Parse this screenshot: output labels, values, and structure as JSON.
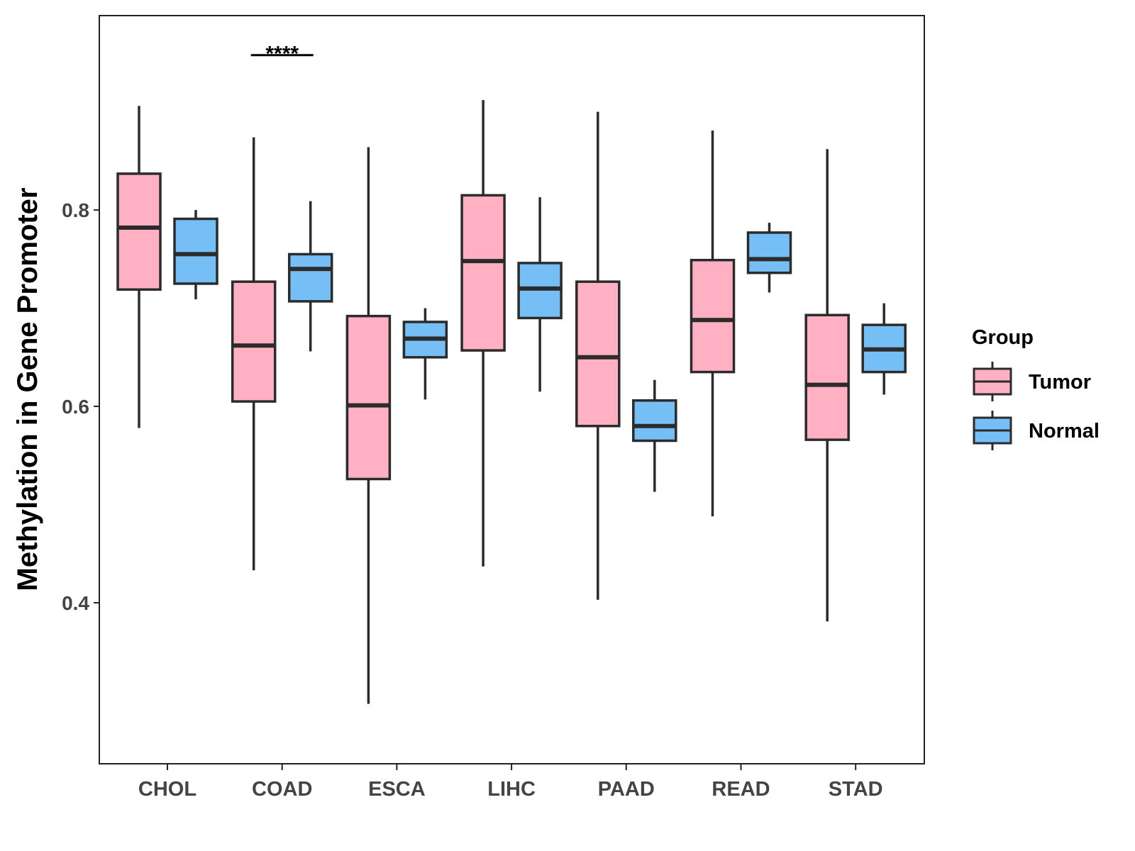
{
  "chart_data": {
    "type": "boxplot",
    "title": "",
    "xlabel": "",
    "ylabel": "Methylation in Gene Promoter",
    "ylim": [
      0.236,
      0.998
    ],
    "yticks": [
      0.4,
      0.6,
      0.8
    ],
    "ytick_labels": [
      "0.4",
      "0.6",
      "0.8"
    ],
    "grid": false,
    "categories": [
      "CHOL",
      "COAD",
      "ESCA",
      "LIHC",
      "PAAD",
      "READ",
      "STAD"
    ],
    "legend": {
      "title": "Group",
      "position": "right",
      "entries": [
        "Tumor",
        "Normal"
      ]
    },
    "colors": {
      "Tumor": "#FFB0C2",
      "Normal": "#76BEF6",
      "outline": "#2b2b2b"
    },
    "series": [
      {
        "name": "Tumor",
        "boxes": [
          {
            "min": 0.578,
            "q1": 0.719,
            "median": 0.782,
            "q3": 0.837,
            "max": 0.906
          },
          {
            "min": 0.433,
            "q1": 0.605,
            "median": 0.662,
            "q3": 0.727,
            "max": 0.874
          },
          {
            "min": 0.297,
            "q1": 0.526,
            "median": 0.601,
            "q3": 0.692,
            "max": 0.864
          },
          {
            "min": 0.437,
            "q1": 0.657,
            "median": 0.748,
            "q3": 0.815,
            "max": 0.912
          },
          {
            "min": 0.403,
            "q1": 0.58,
            "median": 0.65,
            "q3": 0.727,
            "max": 0.9
          },
          {
            "min": 0.488,
            "q1": 0.635,
            "median": 0.688,
            "q3": 0.749,
            "max": 0.881
          },
          {
            "min": 0.381,
            "q1": 0.566,
            "median": 0.622,
            "q3": 0.693,
            "max": 0.862
          }
        ]
      },
      {
        "name": "Normal",
        "boxes": [
          {
            "min": 0.709,
            "q1": 0.725,
            "median": 0.755,
            "q3": 0.791,
            "max": 0.8
          },
          {
            "min": 0.656,
            "q1": 0.707,
            "median": 0.74,
            "q3": 0.755,
            "max": 0.809
          },
          {
            "min": 0.607,
            "q1": 0.65,
            "median": 0.669,
            "q3": 0.686,
            "max": 0.7
          },
          {
            "min": 0.615,
            "q1": 0.69,
            "median": 0.72,
            "q3": 0.746,
            "max": 0.813
          },
          {
            "min": 0.513,
            "q1": 0.565,
            "median": 0.58,
            "q3": 0.606,
            "max": 0.627
          },
          {
            "min": 0.716,
            "q1": 0.736,
            "median": 0.75,
            "q3": 0.777,
            "max": 0.787
          },
          {
            "min": 0.612,
            "q1": 0.635,
            "median": 0.658,
            "q3": 0.683,
            "max": 0.705
          }
        ]
      }
    ],
    "annotations": [
      {
        "category": "COAD",
        "text": "****",
        "y": 0.965
      }
    ]
  }
}
